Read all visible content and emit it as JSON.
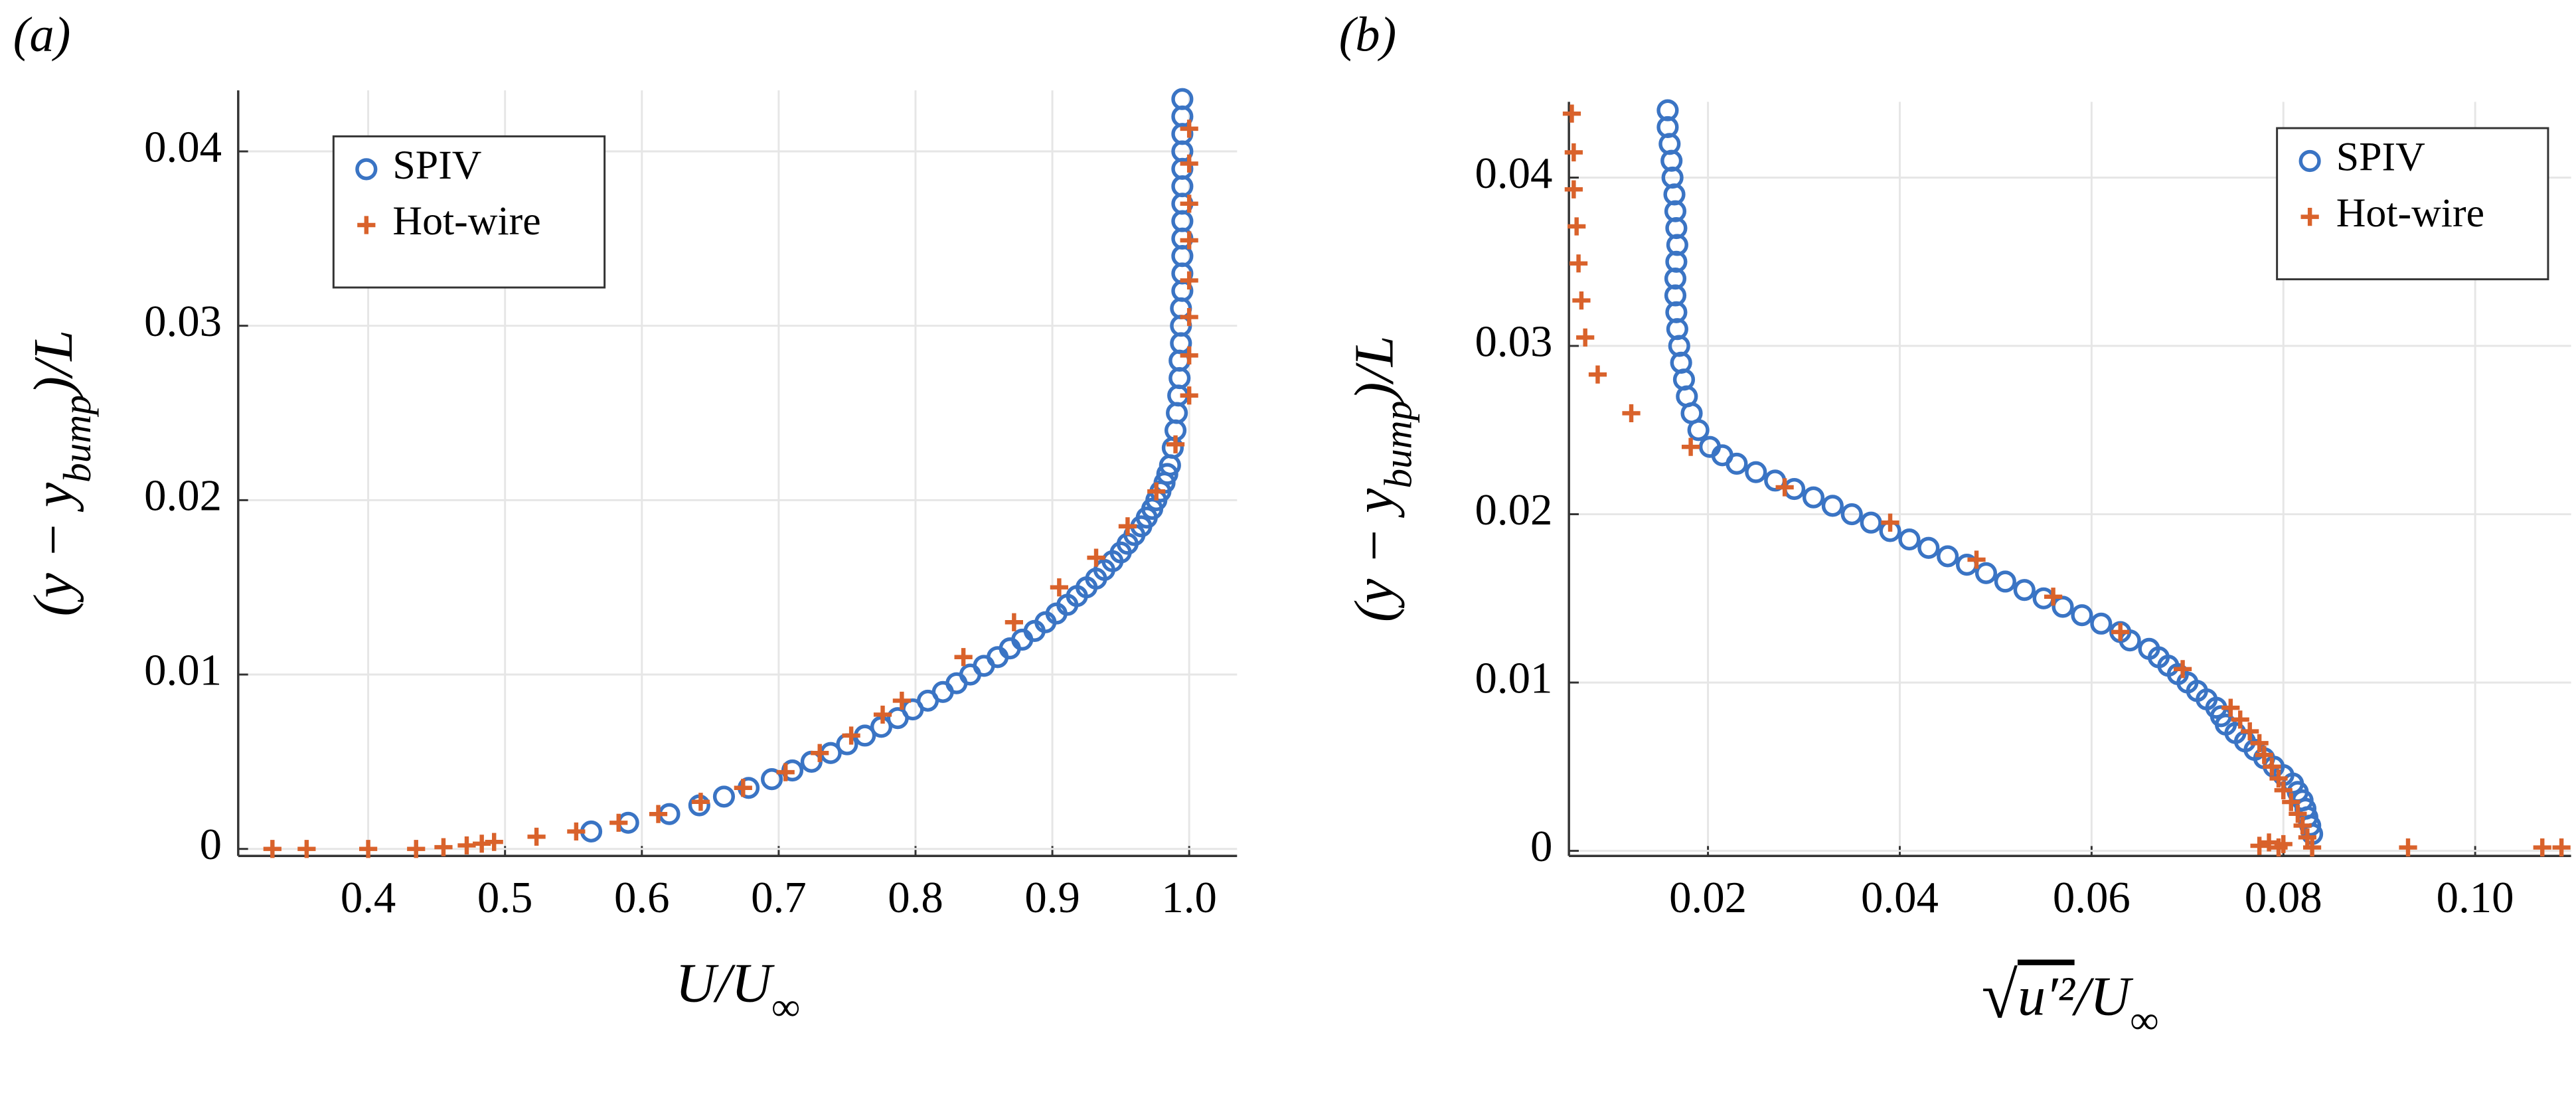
{
  "chart_data": [
    {
      "type": "scatter",
      "panel": "(a)",
      "xlabel": [
        "U/U",
        "∞"
      ],
      "ylabel": [
        "(y − y",
        "bump",
        ")/L"
      ],
      "xlim": [
        0.305,
        1.035
      ],
      "ylim": [
        -0.0004,
        0.0435
      ],
      "xticks": [
        0.4,
        0.5,
        0.6,
        0.7,
        0.8,
        0.9,
        {
          "value": 1,
          "label": "1.0"
        }
      ],
      "yticks": [
        0,
        0.01,
        0.02,
        0.03,
        0.04
      ],
      "grid": true,
      "legend": "upper-left",
      "series": [
        {
          "name": "SPIV",
          "color": "#3a74c4",
          "marker": "o",
          "x": [
            0.563,
            0.59,
            0.62,
            0.642,
            0.66,
            0.678,
            0.695,
            0.71,
            0.724,
            0.738,
            0.75,
            0.763,
            0.775,
            0.787,
            0.798,
            0.809,
            0.82,
            0.83,
            0.84,
            0.85,
            0.86,
            0.869,
            0.878,
            0.887,
            0.895,
            0.903,
            0.911,
            0.918,
            0.925,
            0.932,
            0.938,
            0.944,
            0.95,
            0.955,
            0.96,
            0.965,
            0.969,
            0.973,
            0.976,
            0.979,
            0.982,
            0.984,
            0.986,
            0.988,
            0.99,
            0.991,
            0.992,
            0.993,
            0.993,
            0.994,
            0.994,
            0.994,
            0.995,
            0.995,
            0.995,
            0.995,
            0.995,
            0.995,
            0.995,
            0.995,
            0.995,
            0.995,
            0.995,
            0.995
          ],
          "values": [
            0.001,
            0.0015,
            0.002,
            0.0025,
            0.003,
            0.0035,
            0.004,
            0.0045,
            0.005,
            0.0055,
            0.006,
            0.0065,
            0.007,
            0.0075,
            0.008,
            0.0085,
            0.009,
            0.0095,
            0.01,
            0.0105,
            0.011,
            0.0115,
            0.012,
            0.0125,
            0.013,
            0.0135,
            0.014,
            0.0145,
            0.015,
            0.0155,
            0.016,
            0.0165,
            0.017,
            0.0175,
            0.018,
            0.0185,
            0.019,
            0.0195,
            0.02,
            0.0205,
            0.021,
            0.0215,
            0.022,
            0.023,
            0.024,
            0.025,
            0.026,
            0.027,
            0.028,
            0.029,
            0.03,
            0.031,
            0.032,
            0.033,
            0.034,
            0.035,
            0.036,
            0.037,
            0.038,
            0.039,
            0.04,
            0.041,
            0.042,
            0.043
          ]
        },
        {
          "name": "Hot-wire",
          "color": "#d9622b",
          "marker": "+",
          "x": [
            0.33,
            0.355,
            0.4,
            0.435,
            0.455,
            0.472,
            0.483,
            0.492,
            0.523,
            0.552,
            0.583,
            0.612,
            0.643,
            0.674,
            0.705,
            0.73,
            0.753,
            0.776,
            0.79,
            0.835,
            0.872,
            0.905,
            0.932,
            0.955,
            0.976,
            0.99,
            1.0,
            1.0,
            1.0,
            1.0,
            1.0,
            1.0,
            1.0,
            1.0
          ],
          "values": [
            0,
            0,
            0,
            0,
            0.0001,
            0.0002,
            0.0003,
            0.0004,
            0.0007,
            0.001,
            0.0015,
            0.002,
            0.0027,
            0.0035,
            0.0044,
            0.0055,
            0.0065,
            0.0077,
            0.0085,
            0.011,
            0.013,
            0.015,
            0.0167,
            0.0185,
            0.0205,
            0.0232,
            0.026,
            0.0283,
            0.0305,
            0.0326,
            0.0349,
            0.037,
            0.0393,
            0.0413
          ]
        }
      ]
    },
    {
      "type": "scatter",
      "panel": "(b)",
      "xlabel": [
        "√",
        "u′²",
        "/U",
        "∞"
      ],
      "ylabel": [
        "(y − y",
        "bump",
        ")/L"
      ],
      "xlim": [
        0.0055,
        0.11
      ],
      "ylim": [
        -0.0003,
        0.0445
      ],
      "xticks": [
        0.02,
        0.04,
        0.06,
        0.08,
        {
          "value": 0.1,
          "label": "0.10"
        }
      ],
      "yticks": [
        0,
        0.01,
        0.02,
        0.03,
        0.04
      ],
      "grid": true,
      "legend": "upper-right",
      "series": [
        {
          "name": "SPIV",
          "color": "#3a74c4",
          "marker": "o",
          "x": [
            0.0158,
            0.0158,
            0.016,
            0.0162,
            0.0163,
            0.0165,
            0.0166,
            0.0167,
            0.0168,
            0.0167,
            0.0166,
            0.0166,
            0.0167,
            0.0168,
            0.017,
            0.0172,
            0.0175,
            0.0178,
            0.0183,
            0.019,
            0.0202,
            0.0215,
            0.023,
            0.025,
            0.027,
            0.029,
            0.031,
            0.033,
            0.035,
            0.037,
            0.039,
            0.041,
            0.043,
            0.045,
            0.047,
            0.049,
            0.051,
            0.053,
            0.055,
            0.057,
            0.059,
            0.061,
            0.063,
            0.064,
            0.066,
            0.067,
            0.068,
            0.069,
            0.07,
            0.071,
            0.072,
            0.073,
            0.0735,
            0.074,
            0.075,
            0.076,
            0.077,
            0.078,
            0.079,
            0.08,
            0.081,
            0.0815,
            0.082,
            0.0823,
            0.0825,
            0.0828,
            0.083
          ],
          "values": [
            0.044,
            0.043,
            0.042,
            0.041,
            0.04,
            0.039,
            0.038,
            0.037,
            0.036,
            0.035,
            0.034,
            0.033,
            0.032,
            0.031,
            0.03,
            0.029,
            0.028,
            0.027,
            0.026,
            0.025,
            0.024,
            0.0235,
            0.023,
            0.0225,
            0.022,
            0.0215,
            0.021,
            0.0205,
            0.02,
            0.0195,
            0.019,
            0.0185,
            0.018,
            0.0175,
            0.017,
            0.0165,
            0.016,
            0.0155,
            0.015,
            0.0145,
            0.014,
            0.0135,
            0.013,
            0.0125,
            0.012,
            0.0115,
            0.011,
            0.0105,
            0.01,
            0.0095,
            0.009,
            0.0085,
            0.008,
            0.0075,
            0.007,
            0.0065,
            0.006,
            0.0055,
            0.005,
            0.0045,
            0.004,
            0.0035,
            0.003,
            0.0025,
            0.002,
            0.0015,
            0.001
          ]
        },
        {
          "name": "Hot-wire",
          "color": "#d9622b",
          "marker": "+",
          "x": [
            0.0058,
            0.006,
            0.006,
            0.0063,
            0.0065,
            0.0068,
            0.0072,
            0.0085,
            0.012,
            0.0182,
            0.028,
            0.039,
            0.048,
            0.056,
            0.063,
            0.0695,
            0.0745,
            0.0755,
            0.0765,
            0.0775,
            0.078,
            0.0788,
            0.0795,
            0.08,
            0.0808,
            0.0815,
            0.082,
            0.0825,
            0.083,
            0.08,
            0.0795,
            0.0785,
            0.0775,
            0.093,
            0.107,
            0.109
          ],
          "values": [
            0.0438,
            0.0415,
            0.0393,
            0.0371,
            0.0349,
            0.0327,
            0.0305,
            0.0283,
            0.026,
            0.024,
            0.0216,
            0.0195,
            0.0173,
            0.0151,
            0.013,
            0.0108,
            0.0085,
            0.0078,
            0.0071,
            0.0064,
            0.0057,
            0.005,
            0.0043,
            0.0036,
            0.0029,
            0.0022,
            0.0015,
            0.0008,
            0.0002,
            0.0004,
            0.0002,
            0.0005,
            0.0003,
            0.0002,
            0.0002,
            0.0002
          ]
        }
      ]
    }
  ]
}
